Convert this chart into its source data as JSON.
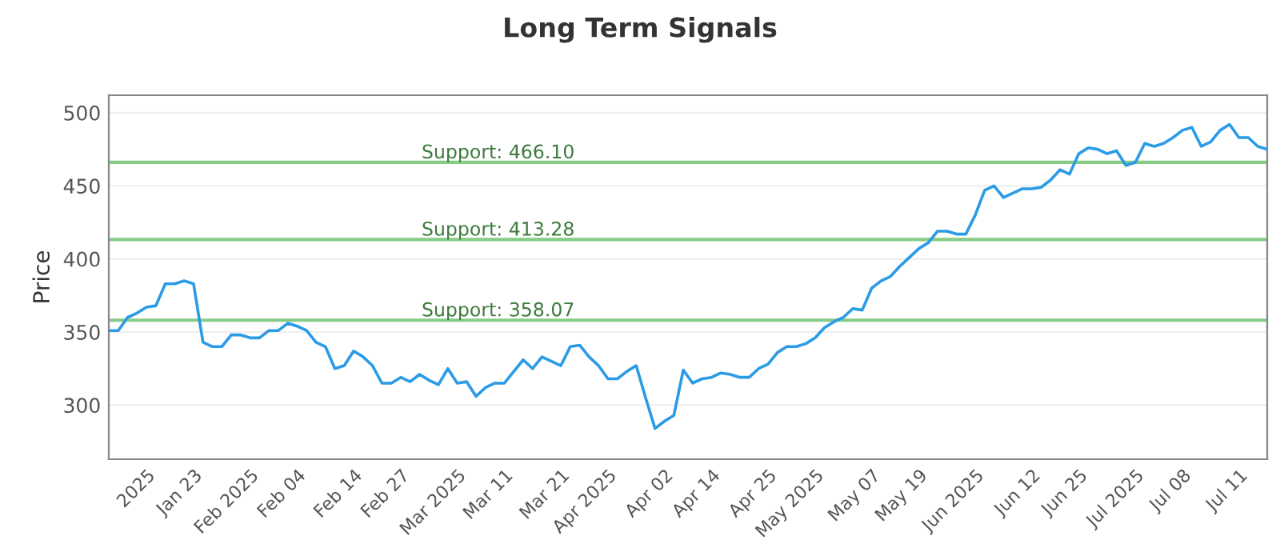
{
  "chart_data": {
    "type": "line",
    "title": "Long Term Signals",
    "ylabel": "Price",
    "categories": [
      null,
      null,
      null,
      null,
      "2025",
      null,
      null,
      null,
      null,
      "Jan 23",
      null,
      null,
      null,
      null,
      null,
      "Feb 2025",
      null,
      null,
      null,
      null,
      "Feb 04",
      null,
      null,
      null,
      null,
      null,
      "Feb 14",
      null,
      null,
      null,
      null,
      "Feb 27",
      null,
      null,
      null,
      null,
      null,
      "Mar 2025",
      null,
      null,
      null,
      null,
      "Mar 11",
      null,
      null,
      null,
      null,
      null,
      "Mar 21",
      null,
      null,
      null,
      null,
      "Apr 2025",
      null,
      null,
      null,
      null,
      null,
      "Apr 02",
      null,
      null,
      null,
      null,
      "Apr 14",
      null,
      null,
      null,
      null,
      null,
      "Apr 25",
      null,
      null,
      null,
      null,
      "May 2025",
      null,
      null,
      null,
      null,
      null,
      "May 07",
      null,
      null,
      null,
      null,
      "May 19",
      null,
      null,
      null,
      null,
      null,
      "Jun 2025",
      null,
      null,
      null,
      null,
      null,
      "Jun 12",
      null,
      null,
      null,
      null,
      "Jun 25",
      null,
      null,
      null,
      null,
      null,
      "Jul 2025",
      null,
      null,
      null,
      null,
      "Jul 08",
      null,
      null,
      null,
      null,
      null,
      "Jul 11",
      null,
      null,
      null
    ],
    "series": [
      {
        "color": "#2b9be6",
        "values": [
          351,
          351,
          360,
          363,
          367,
          368,
          383,
          383,
          385,
          383,
          343,
          340,
          340,
          348,
          348,
          346,
          346,
          351,
          351,
          356,
          354,
          351,
          343,
          340,
          325,
          327,
          337,
          333,
          327,
          315,
          315,
          319,
          316,
          321,
          317,
          314,
          325,
          315,
          316,
          306,
          312,
          315,
          315,
          323,
          331,
          325,
          333,
          330,
          327,
          340,
          341,
          333,
          327,
          318,
          318,
          323,
          327,
          305,
          284,
          289,
          293,
          324,
          315,
          318,
          319,
          322,
          321,
          319,
          319,
          325,
          328,
          336,
          340,
          340,
          342,
          346,
          353,
          357,
          360,
          366,
          365,
          380,
          385,
          388,
          395,
          401,
          407,
          411,
          419,
          419,
          417,
          417,
          430,
          447,
          450,
          442,
          445,
          448,
          448,
          449,
          454,
          461,
          458,
          472,
          476,
          475,
          472,
          474,
          464,
          466,
          479,
          477,
          479,
          483,
          488,
          490,
          477,
          480,
          488,
          492,
          483,
          483,
          477,
          475
        ]
      }
    ],
    "ylim": [
      263,
      512
    ],
    "yticks": [
      300,
      350,
      400,
      450,
      500
    ],
    "ref_lines": [
      {
        "axis": "y",
        "value": 466.1,
        "label": "Support: 466.10",
        "color": "#86cc86"
      },
      {
        "axis": "y",
        "value": 413.28,
        "label": "Support: 413.28",
        "color": "#86cc86"
      },
      {
        "axis": "y",
        "value": 358.07,
        "label": "Support: 358.07",
        "color": "#86cc86"
      }
    ],
    "grid": "y",
    "legend": false,
    "marker": "none",
    "line_style": "solid"
  }
}
